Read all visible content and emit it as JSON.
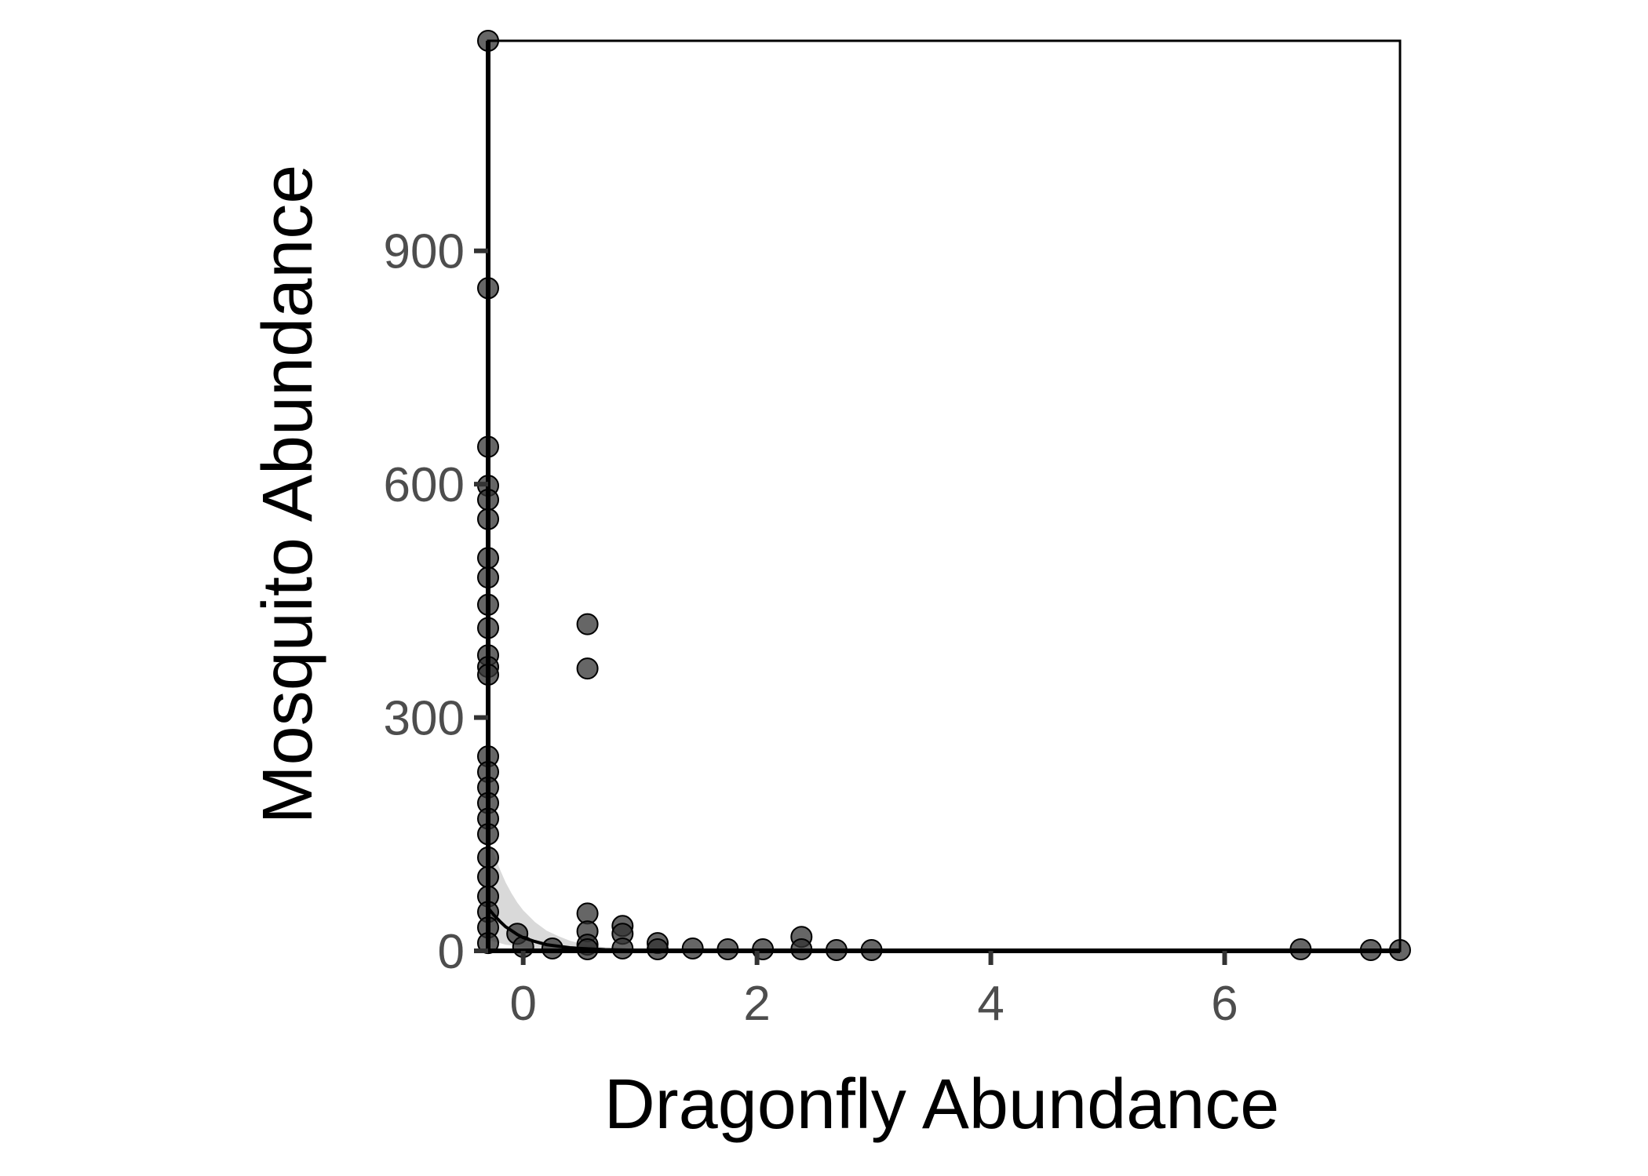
{
  "chart_data": {
    "type": "scatter",
    "xlabel": "Dragonfly Abundance",
    "ylabel": "Mosquito Abundance",
    "xlim": [
      -0.3,
      7.5
    ],
    "ylim": [
      0,
      1170
    ],
    "x_ticks": [
      0,
      2,
      4,
      6
    ],
    "y_ticks": [
      0,
      300,
      600,
      900
    ],
    "x_tick_labels": [
      "0",
      "2",
      "4",
      "6"
    ],
    "y_tick_labels": [
      "0",
      "300",
      "600",
      "900"
    ],
    "grid": false,
    "legend": "none",
    "point_color": "#333333",
    "line_color": "#000000",
    "ribbon_color": "#d9d9d9",
    "points": [
      {
        "x": -0.33,
        "y": 1170
      },
      {
        "x": -0.33,
        "y": 852
      },
      {
        "x": -0.33,
        "y": 648
      },
      {
        "x": -0.33,
        "y": 598
      },
      {
        "x": -0.33,
        "y": 580
      },
      {
        "x": -0.33,
        "y": 555
      },
      {
        "x": -0.33,
        "y": 505
      },
      {
        "x": -0.33,
        "y": 480
      },
      {
        "x": -0.33,
        "y": 445
      },
      {
        "x": -0.33,
        "y": 415
      },
      {
        "x": -0.33,
        "y": 380
      },
      {
        "x": -0.33,
        "y": 365
      },
      {
        "x": -0.33,
        "y": 355
      },
      {
        "x": -0.33,
        "y": 250
      },
      {
        "x": -0.33,
        "y": 230
      },
      {
        "x": -0.33,
        "y": 210
      },
      {
        "x": -0.33,
        "y": 190
      },
      {
        "x": -0.33,
        "y": 170
      },
      {
        "x": -0.33,
        "y": 150
      },
      {
        "x": -0.33,
        "y": 120
      },
      {
        "x": -0.33,
        "y": 95
      },
      {
        "x": -0.33,
        "y": 70
      },
      {
        "x": -0.33,
        "y": 50
      },
      {
        "x": -0.33,
        "y": 30
      },
      {
        "x": -0.33,
        "y": 10
      },
      {
        "x": -0.05,
        "y": 22
      },
      {
        "x": 0.0,
        "y": 5
      },
      {
        "x": 0.25,
        "y": 3
      },
      {
        "x": 0.55,
        "y": 420
      },
      {
        "x": 0.55,
        "y": 363
      },
      {
        "x": 0.55,
        "y": 48
      },
      {
        "x": 0.55,
        "y": 25
      },
      {
        "x": 0.55,
        "y": 8
      },
      {
        "x": 0.55,
        "y": 2
      },
      {
        "x": 0.85,
        "y": 32
      },
      {
        "x": 0.85,
        "y": 22
      },
      {
        "x": 0.85,
        "y": 3
      },
      {
        "x": 1.15,
        "y": 10
      },
      {
        "x": 1.15,
        "y": 2
      },
      {
        "x": 1.45,
        "y": 3
      },
      {
        "x": 1.75,
        "y": 2
      },
      {
        "x": 2.05,
        "y": 2
      },
      {
        "x": 2.38,
        "y": 18
      },
      {
        "x": 2.38,
        "y": 2
      },
      {
        "x": 2.68,
        "y": 1
      },
      {
        "x": 2.98,
        "y": 1
      },
      {
        "x": 6.65,
        "y": 2
      },
      {
        "x": 7.25,
        "y": 1
      },
      {
        "x": 7.5,
        "y": 1
      }
    ],
    "fit_line": {
      "x": [
        -0.33,
        -0.3,
        -0.25,
        -0.2,
        -0.15,
        -0.1,
        -0.05,
        0.0,
        0.1,
        0.2,
        0.3,
        0.4,
        0.5,
        0.7,
        1.0,
        1.5,
        2.0,
        3.0,
        5.0,
        7.5
      ],
      "y": [
        62,
        55,
        46,
        38,
        31,
        26,
        21,
        17,
        12,
        8,
        6,
        4,
        3,
        1.5,
        0.7,
        0.2,
        0.1,
        0.02,
        0,
        0
      ]
    },
    "fit_ribbon": {
      "x": [
        -0.33,
        -0.3,
        -0.25,
        -0.2,
        -0.15,
        -0.1,
        -0.05,
        0.0,
        0.1,
        0.2,
        0.3,
        0.4,
        0.5,
        0.7,
        1.0,
        1.5,
        2.0,
        3.0,
        5.0,
        7.5
      ],
      "upper": [
        175,
        150,
        125,
        105,
        88,
        74,
        62,
        52,
        37,
        26,
        19,
        13,
        9,
        4.5,
        1.8,
        0.5,
        0.2,
        0.05,
        0,
        0
      ],
      "lower": [
        15,
        14,
        12,
        10,
        8,
        7,
        5,
        4,
        2.5,
        1.6,
        1,
        0.6,
        0.4,
        0.2,
        0.1,
        0,
        0,
        0,
        0,
        0
      ]
    }
  }
}
